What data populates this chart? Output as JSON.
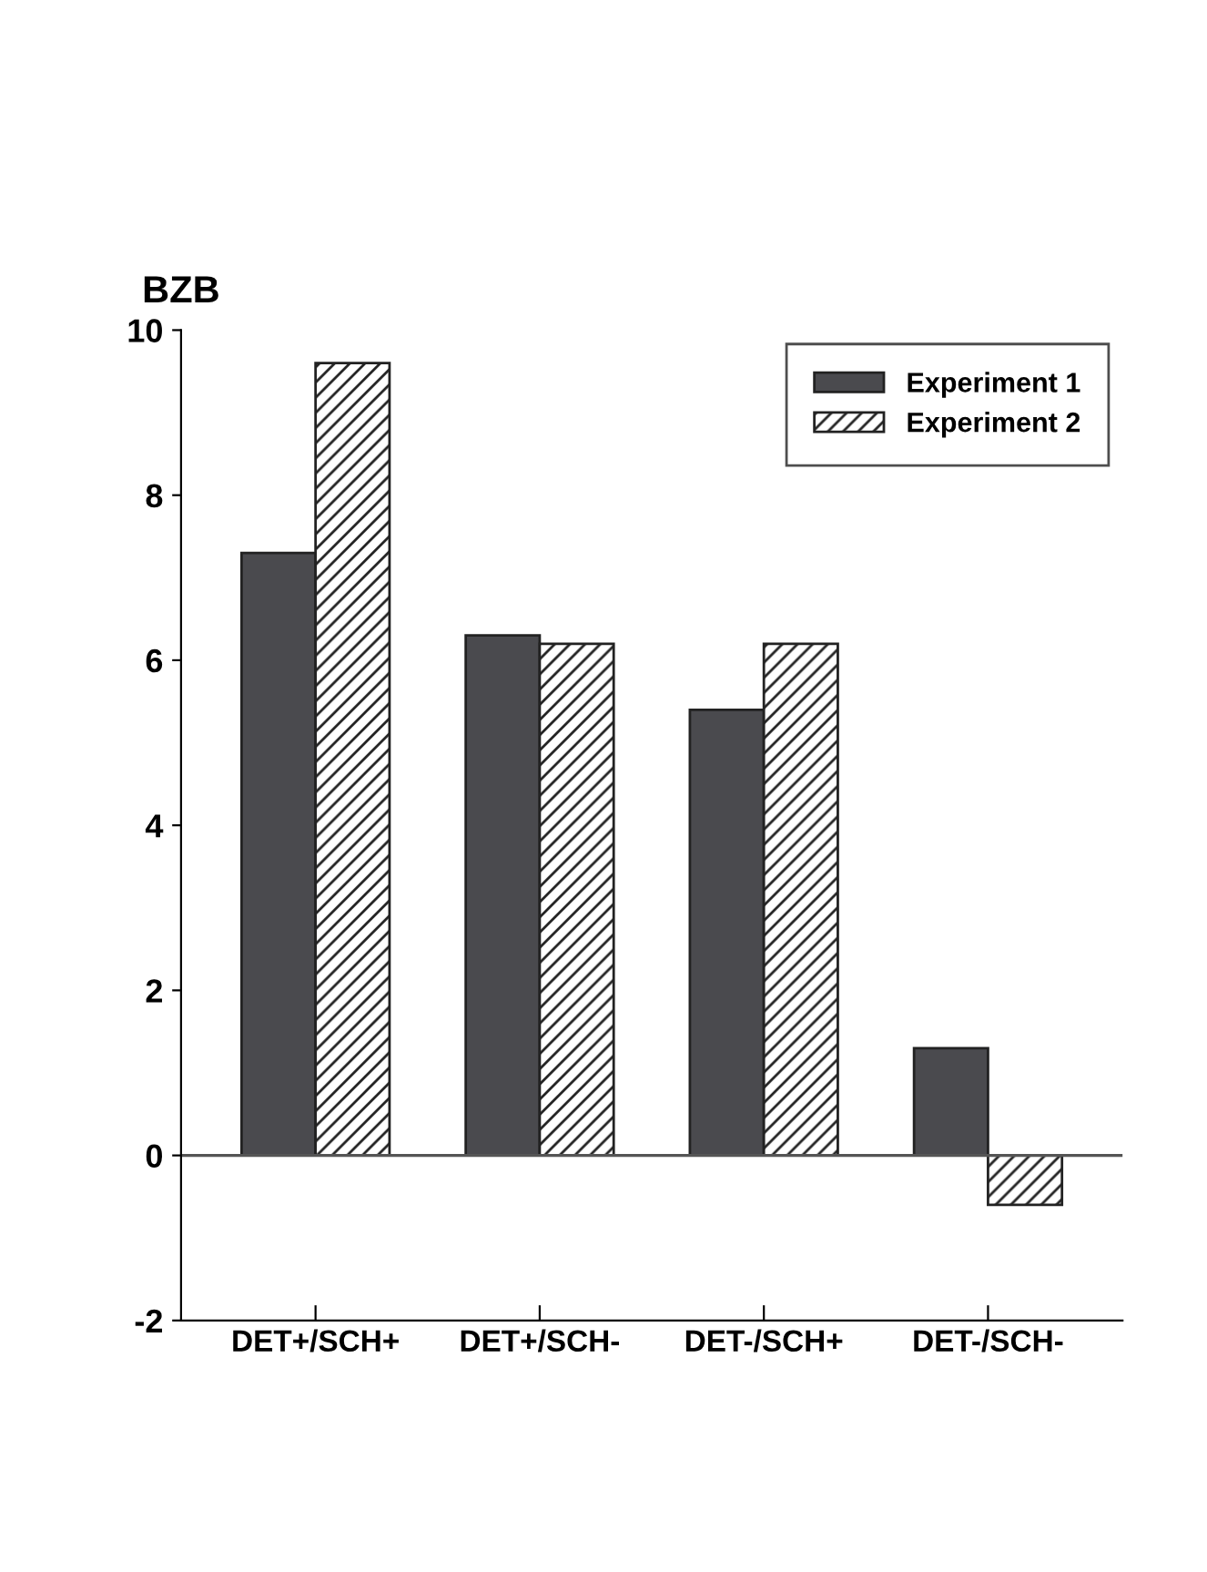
{
  "chart_data": {
    "type": "bar",
    "ylabel": "BZB",
    "categories": [
      "DET+/SCH+",
      "DET+/SCH-",
      "DET-/SCH+",
      "DET-/SCH-"
    ],
    "series": [
      {
        "name": "Experiment 1",
        "color": "#4a4a4e",
        "values": [
          7.3,
          6.3,
          5.4,
          1.3
        ]
      },
      {
        "name": "Experiment 2",
        "color": "#222222",
        "values": [
          9.6,
          6.2,
          6.2,
          -0.6
        ]
      }
    ],
    "ylim": [
      -2,
      10
    ],
    "yticks": [
      -2,
      0,
      2,
      4,
      6,
      8,
      10
    ],
    "ref_lines": [
      {
        "axis": "y",
        "value": 0,
        "color": "#555555"
      }
    ],
    "grid": false,
    "legend": "top right"
  }
}
